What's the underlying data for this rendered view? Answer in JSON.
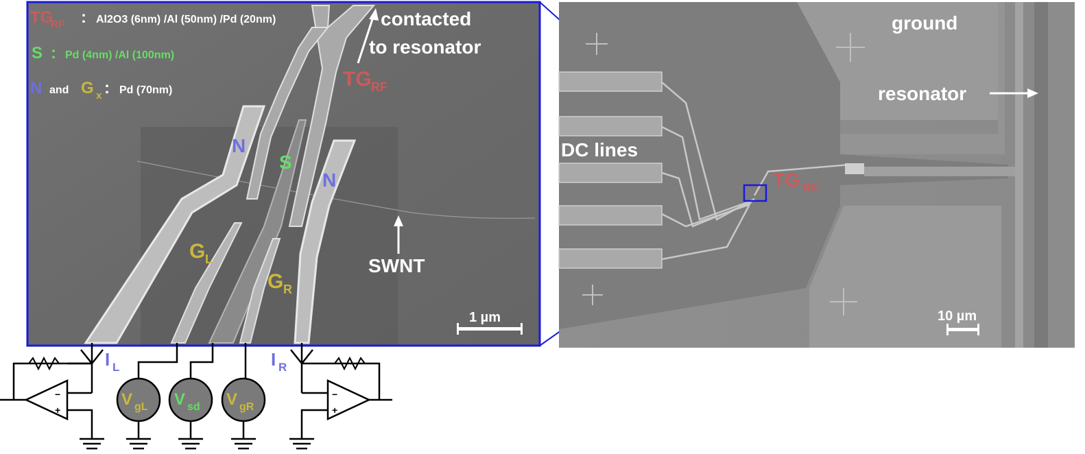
{
  "legend": {
    "tg": {
      "main": "TG",
      "sub": "RF",
      "colon": ":",
      "desc": "Al2O3 (6nm) /Al (50nm) /Pd (20nm)"
    },
    "s": {
      "main": "S",
      "colon": ":",
      "desc": "Pd (4nm) /Al (100nm)"
    },
    "n": {
      "main": "N",
      "and": "and",
      "g": "G",
      "gsub": "x",
      "colon": ":",
      "desc": "Pd (70nm)"
    }
  },
  "left_image": {
    "contacted_line1": "contacted",
    "contacted_line2": "to resonator",
    "tg_main": "TG",
    "tg_sub": "RF",
    "n_left": "N",
    "n_right": "N",
    "s_label": "S",
    "gl_main": "G",
    "gl_sub": "L",
    "gr_main": "G",
    "gr_sub": "R",
    "swnt": "SWNT",
    "scale": "1 µm"
  },
  "right_image": {
    "ground": "ground",
    "resonator": "resonator",
    "dc_lines": "DC lines",
    "tg_main": "TG",
    "tg_sub": "RF",
    "scale": "10 µm"
  },
  "circuit": {
    "il_main": "I",
    "il_sub": "L",
    "ir_main": "I",
    "ir_sub": "R",
    "vgl_main": "V",
    "vgl_sub": "gL",
    "vsd_main": "V",
    "vsd_sub": "sd",
    "vgr_main": "V",
    "vgr_sub": "gR",
    "opamp_minus": "−",
    "opamp_plus": "+"
  },
  "colors": {
    "tg": "#cc5a5a",
    "s": "#66dd66",
    "n": "#6f6fe0",
    "g": "#c9b83c",
    "frame": "#1a1adc",
    "sem_dark": "#6e6e6e",
    "sem_light": "#8a8a8a"
  }
}
